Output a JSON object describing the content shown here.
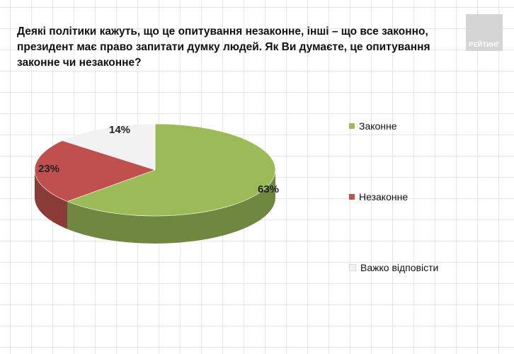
{
  "question": "Деякі політики кажуть, що це опитування незаконне, інші – що все законно, президент має право запитати думку людей. Як Ви думаєте, це опитування законне чи незаконне?",
  "logo_text": "РЕЙТИНГ",
  "chart_data": {
    "type": "pie",
    "title": "Деякі політики кажуть, що це опитування незаконне, інші – що все законно, президент має право запитати думку людей. Як Ви думаєте, це опитування законне чи незаконне?",
    "categories": [
      "Законне",
      "Незаконне",
      "Важко відповісти"
    ],
    "values": [
      63,
      23,
      14
    ],
    "labels": [
      "63%",
      "23%",
      "14%"
    ],
    "colors": [
      "#9bbb59",
      "#c0504d",
      "#f2f2f2"
    ],
    "legend_position": "right",
    "style": "3d"
  }
}
